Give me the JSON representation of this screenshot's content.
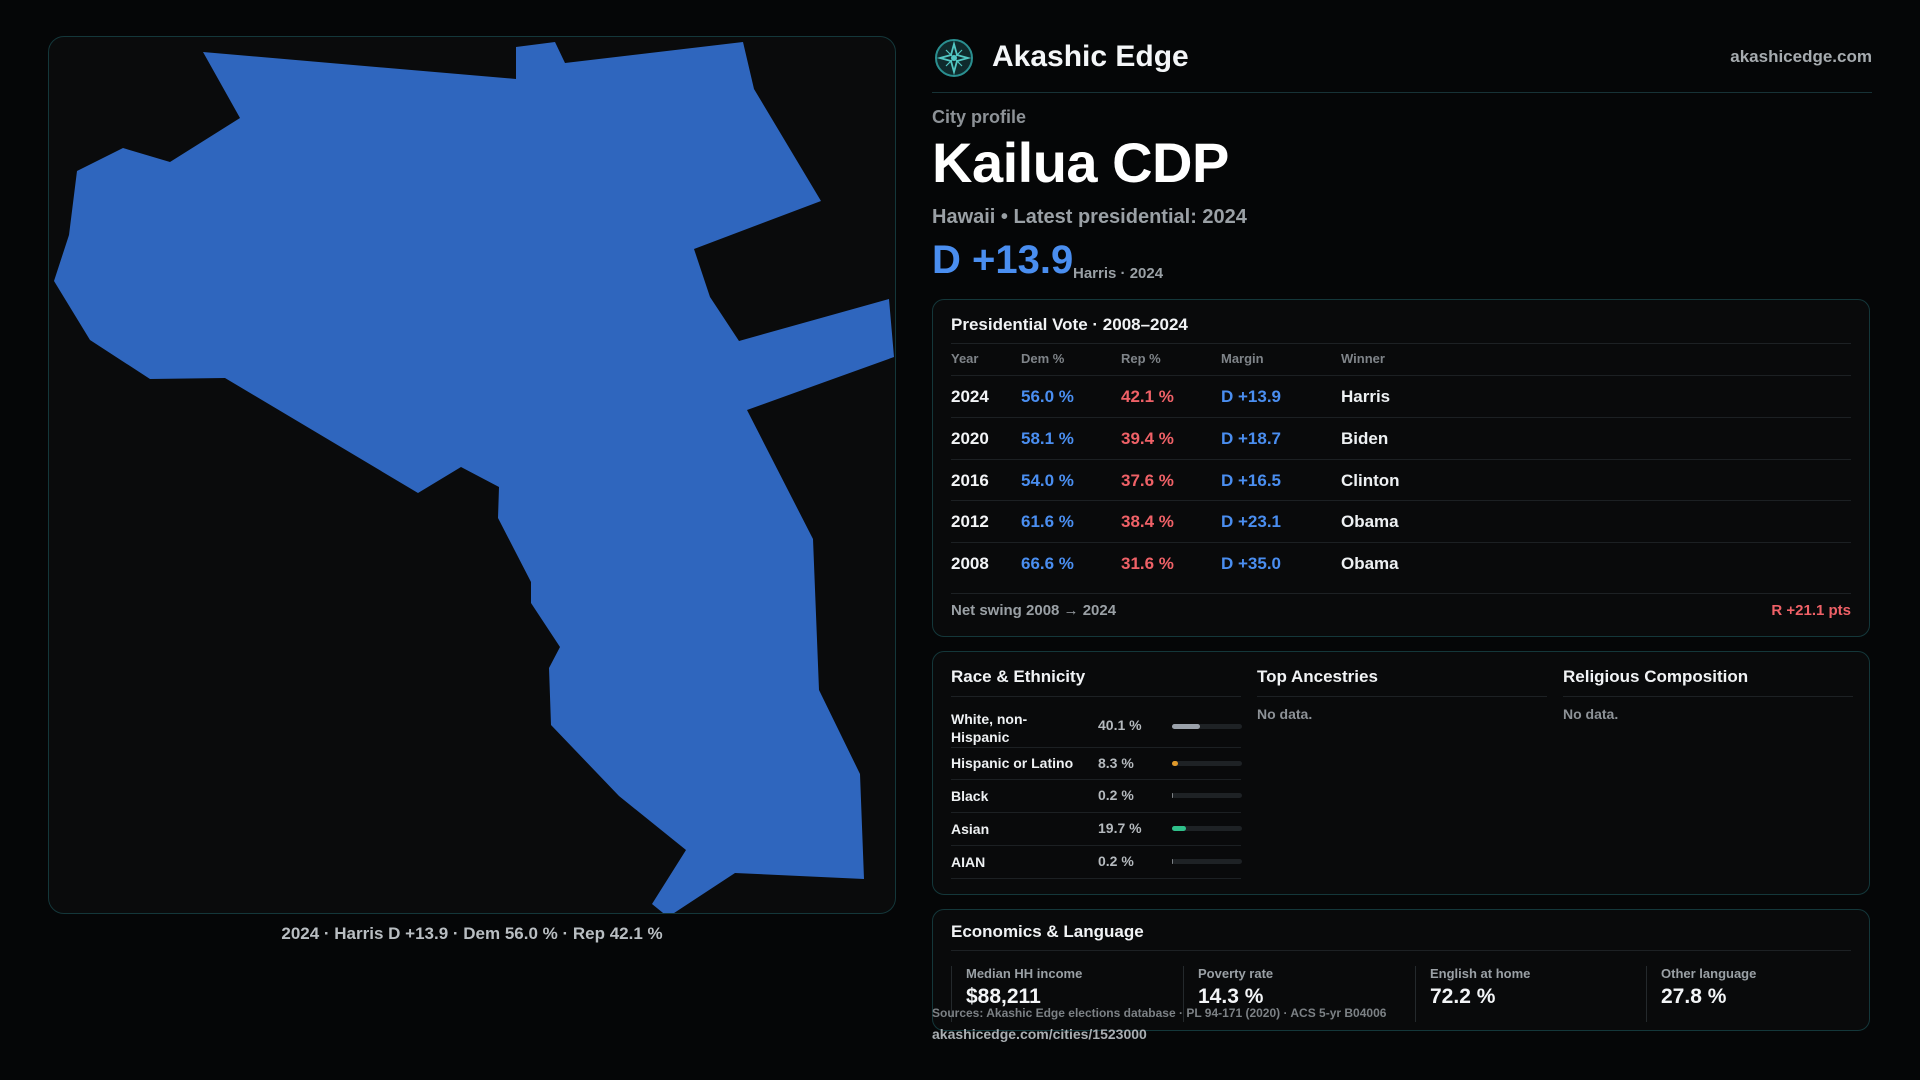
{
  "brand": {
    "name": "Akashic Edge",
    "url": "akashicedge.com",
    "logo_icon": "compass-star-icon"
  },
  "profile": {
    "eyebrow": "City profile",
    "title": "Kailua CDP",
    "subtitle": "Hawaii • Latest presidential: 2024",
    "margin": "D +13.9",
    "margin_note": "Harris · 2024"
  },
  "map": {
    "caption": "2024 · Harris D +13.9 · Dem 56.0 % · Rep 42.1 %",
    "fill_color": "#2f66be"
  },
  "votes": {
    "title": "Presidential Vote · 2008–2024",
    "headers": [
      "Year",
      "Dem %",
      "Rep %",
      "Margin",
      "Winner"
    ],
    "rows": [
      {
        "year": "2024",
        "dem": "56.0 %",
        "rep": "42.1 %",
        "margin": "D +13.9",
        "winner": "Harris"
      },
      {
        "year": "2020",
        "dem": "58.1 %",
        "rep": "39.4 %",
        "margin": "D +18.7",
        "winner": "Biden"
      },
      {
        "year": "2016",
        "dem": "54.0 %",
        "rep": "37.6 %",
        "margin": "D +16.5",
        "winner": "Clinton"
      },
      {
        "year": "2012",
        "dem": "61.6 %",
        "rep": "38.4 %",
        "margin": "D +23.1",
        "winner": "Obama"
      },
      {
        "year": "2008",
        "dem": "66.6 %",
        "rep": "31.6 %",
        "margin": "D +35.0",
        "winner": "Obama"
      }
    ],
    "swing_label": "Net swing 2008 → 2024",
    "swing_value": "R +21.1 pts"
  },
  "race": {
    "title": "Race & Ethnicity",
    "rows": [
      {
        "name": "White, non-Hispanic",
        "pct": "40.1 %",
        "value": 40.1,
        "color": "#9aa1aa"
      },
      {
        "name": "Hispanic or Latino",
        "pct": "8.3 %",
        "value": 8.3,
        "color": "#e09a2b"
      },
      {
        "name": "Black",
        "pct": "0.2 %",
        "value": 0.2,
        "color": "#7c8185"
      },
      {
        "name": "Asian",
        "pct": "19.7 %",
        "value": 19.7,
        "color": "#2fc08a"
      },
      {
        "name": "AIAN",
        "pct": "0.2 %",
        "value": 0.2,
        "color": "#7c8185"
      }
    ]
  },
  "ancestries": {
    "title": "Top Ancestries",
    "empty": "No data."
  },
  "religion": {
    "title": "Religious Composition",
    "empty": "No data."
  },
  "economics": {
    "title": "Economics & Language",
    "stats": [
      {
        "label": "Median HH income",
        "value": "$88,211"
      },
      {
        "label": "Poverty rate",
        "value": "14.3 %"
      },
      {
        "label": "English at home",
        "value": "72.2 %"
      },
      {
        "label": "Other language",
        "value": "27.8 %"
      }
    ]
  },
  "footer": {
    "sources": "Sources: Akashic Edge elections database · PL 94-171 (2020) · ACS 5-yr B04006",
    "url": "akashicedge.com/cities/1523000"
  }
}
